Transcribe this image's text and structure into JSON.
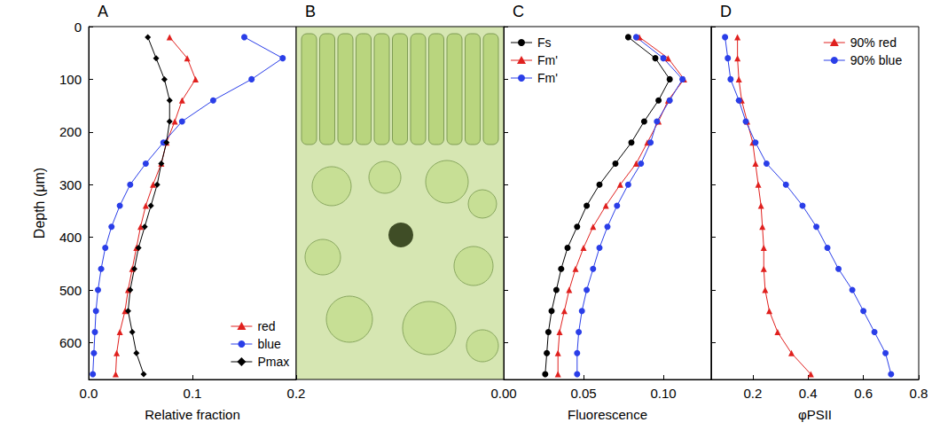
{
  "chart_data": [
    {
      "type": "line",
      "title": "A",
      "x_label": "Relative fraction",
      "y_label": "Depth (μm)",
      "xlim": [
        0,
        0.2
      ],
      "xticks": [
        {
          "value": 0,
          "label": "0.0"
        },
        0.1,
        0.2
      ],
      "ylim": [
        0,
        670
      ],
      "yticks": [
        0,
        100,
        200,
        300,
        400,
        500,
        600
      ],
      "grid": false,
      "legend": "lower right",
      "tick_labels": true,
      "y": [
        20,
        60,
        100,
        140,
        180,
        220,
        260,
        300,
        340,
        380,
        420,
        460,
        500,
        540,
        580,
        620,
        660
      ],
      "series": [
        {
          "name": "red",
          "color": "#e0201e",
          "marker": "triangle",
          "line_style": "solid",
          "values": [
            0.078,
            0.095,
            0.103,
            0.09,
            0.083,
            0.075,
            0.07,
            0.062,
            0.055,
            0.05,
            0.046,
            0.042,
            0.038,
            0.035,
            0.03,
            0.027,
            0.026
          ]
        },
        {
          "name": "blue",
          "color": "#2a3ee8",
          "marker": "circle",
          "line_style": "solid",
          "values": [
            0.15,
            0.187,
            0.157,
            0.12,
            0.09,
            0.072,
            0.055,
            0.04,
            0.03,
            0.022,
            0.016,
            0.012,
            0.009,
            0.007,
            0.006,
            0.005,
            0.004
          ]
        },
        {
          "name": "Pmax",
          "color": "#000000",
          "marker": "diamond",
          "line_style": "solid",
          "values": [
            0.057,
            0.065,
            0.073,
            0.078,
            0.078,
            0.075,
            0.07,
            0.066,
            0.06,
            0.054,
            0.048,
            0.044,
            0.04,
            0.038,
            0.042,
            0.046,
            0.053
          ]
        }
      ]
    },
    {
      "type": "line",
      "title": "C",
      "x_label": "Fluorescence",
      "xlim": [
        0,
        0.13
      ],
      "xticks": [
        {
          "value": 0,
          "label": "0.00"
        },
        0.05,
        {
          "value": 0.1,
          "label": "0.10"
        }
      ],
      "ylim": [
        0,
        670
      ],
      "yticks": [
        0,
        100,
        200,
        300,
        400,
        500,
        600
      ],
      "grid": false,
      "legend": "upper left",
      "tick_labels": "x",
      "y": [
        20,
        60,
        100,
        140,
        180,
        220,
        260,
        300,
        340,
        380,
        420,
        460,
        500,
        540,
        580,
        620,
        660
      ],
      "series": [
        {
          "name": "Fs",
          "color": "#000000",
          "marker": "circle",
          "line_style": "solid",
          "values": [
            0.078,
            0.095,
            0.104,
            0.097,
            0.088,
            0.08,
            0.07,
            0.06,
            0.052,
            0.046,
            0.04,
            0.036,
            0.033,
            0.03,
            0.028,
            0.027,
            0.026
          ]
        },
        {
          "name": "Fm'",
          "color": "#e0201e",
          "marker": "triangle",
          "line_style": "solid",
          "values": [
            0.085,
            0.103,
            0.113,
            0.103,
            0.097,
            0.09,
            0.083,
            0.073,
            0.064,
            0.056,
            0.05,
            0.045,
            0.041,
            0.038,
            0.035,
            0.034,
            0.034
          ]
        },
        {
          "name": "Fm'",
          "color": "#2a3ee8",
          "marker": "circle",
          "line_style": "solid",
          "values": [
            0.083,
            0.1,
            0.112,
            0.104,
            0.096,
            0.092,
            0.086,
            0.078,
            0.071,
            0.065,
            0.06,
            0.056,
            0.052,
            0.049,
            0.047,
            0.046,
            0.046
          ]
        }
      ]
    },
    {
      "type": "line",
      "title": "D",
      "x_label": "φPSII",
      "xlim": [
        0.05,
        0.8
      ],
      "xticks": [
        0.2,
        0.4,
        0.6,
        0.8
      ],
      "ylim": [
        0,
        670
      ],
      "yticks": [
        0,
        100,
        200,
        300,
        400,
        500,
        600
      ],
      "grid": false,
      "legend": "upper right",
      "tick_labels": "x",
      "y": [
        20,
        60,
        100,
        140,
        180,
        220,
        260,
        300,
        340,
        380,
        420,
        460,
        500,
        540,
        580,
        620,
        660
      ],
      "series": [
        {
          "name": "90% red",
          "color": "#e0201e",
          "marker": "triangle",
          "line_style": "solid",
          "values": [
            0.145,
            0.145,
            0.15,
            0.16,
            0.18,
            0.2,
            0.21,
            0.22,
            0.23,
            0.235,
            0.24,
            0.24,
            0.245,
            0.26,
            0.29,
            0.34,
            0.41
          ]
        },
        {
          "name": "90% blue",
          "color": "#2a3ee8",
          "marker": "circle",
          "line_style": "solid",
          "values": [
            0.1,
            0.11,
            0.12,
            0.15,
            0.175,
            0.21,
            0.25,
            0.32,
            0.38,
            0.43,
            0.47,
            0.51,
            0.56,
            0.6,
            0.64,
            0.68,
            0.7
          ]
        }
      ]
    }
  ],
  "image_panel": {
    "title": "B"
  }
}
